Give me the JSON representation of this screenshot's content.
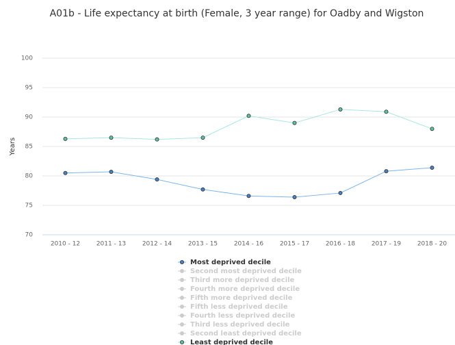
{
  "chart_data": {
    "type": "line",
    "title": "A01b - Life expectancy at birth (Female, 3 year range) for Oadby and Wigston",
    "y_label": "Years",
    "categories": [
      "2010 - 12",
      "2011 - 13",
      "2012 - 14",
      "2013 - 15",
      "2014 - 16",
      "2015 - 17",
      "2016 - 18",
      "2017 - 19",
      "2018 - 20"
    ],
    "ylim": [
      70,
      100
    ],
    "yticks": [
      70,
      75,
      80,
      85,
      90,
      95,
      100
    ],
    "grid": true,
    "legend": "bottom",
    "series": [
      {
        "name": "Most deprived decile",
        "color": "#7cb5ec",
        "marker": "#4a7fbf",
        "visible": true,
        "values": [
          80.5,
          80.7,
          79.4,
          77.7,
          76.6,
          76.4,
          77.1,
          80.8,
          81.4
        ]
      },
      {
        "name": "Second most deprived decile",
        "color": "#cccccc",
        "visible": false,
        "values": [
          null,
          null,
          null,
          null,
          null,
          null,
          null,
          null,
          null
        ]
      },
      {
        "name": "Third more deprived decile",
        "color": "#cccccc",
        "visible": false,
        "values": [
          null,
          null,
          null,
          null,
          null,
          null,
          null,
          null,
          null
        ]
      },
      {
        "name": "Fourth more deprived decile",
        "color": "#cccccc",
        "visible": false,
        "values": [
          null,
          null,
          null,
          null,
          null,
          null,
          null,
          null,
          null
        ]
      },
      {
        "name": "Fifth more deprived decile",
        "color": "#cccccc",
        "visible": false,
        "values": [
          null,
          null,
          null,
          null,
          null,
          null,
          null,
          null,
          null
        ]
      },
      {
        "name": "Fifth less deprived decile",
        "color": "#cccccc",
        "visible": false,
        "values": [
          null,
          null,
          null,
          null,
          null,
          null,
          null,
          null,
          null
        ]
      },
      {
        "name": "Fourth less deprived decile",
        "color": "#cccccc",
        "visible": false,
        "values": [
          null,
          null,
          null,
          null,
          null,
          null,
          null,
          null,
          null
        ]
      },
      {
        "name": "Third less deprived decile",
        "color": "#cccccc",
        "visible": false,
        "values": [
          null,
          null,
          null,
          null,
          null,
          null,
          null,
          null,
          null
        ]
      },
      {
        "name": "Second least deprived decile",
        "color": "#cccccc",
        "visible": false,
        "values": [
          null,
          null,
          null,
          null,
          null,
          null,
          null,
          null,
          null
        ]
      },
      {
        "name": "Least deprived decile",
        "color": "#a8e6e6",
        "marker": "#5fbf9f",
        "visible": true,
        "values": [
          86.3,
          86.5,
          86.2,
          86.5,
          90.2,
          89.0,
          91.3,
          90.9,
          88.0
        ]
      }
    ]
  }
}
